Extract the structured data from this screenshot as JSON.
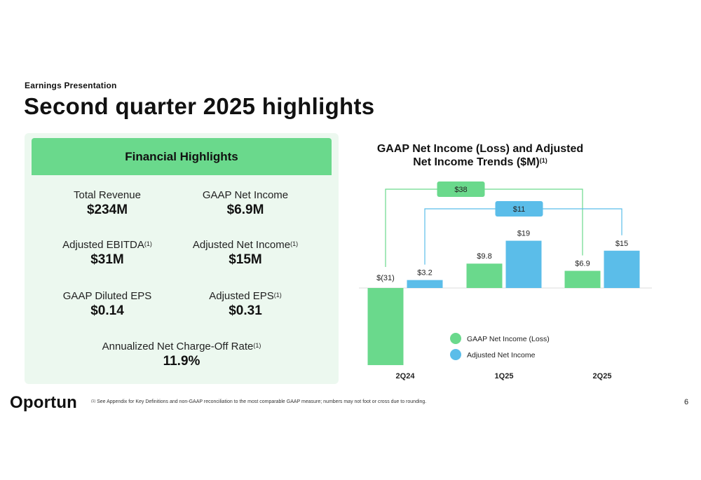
{
  "eyebrow": "Earnings Presentation",
  "title": "Second quarter 2025 highlights",
  "highlights": {
    "header": "Financial Highlights",
    "metrics": [
      {
        "label": "Total Revenue",
        "sup": "",
        "value": "$234M"
      },
      {
        "label": "GAAP Net Income",
        "sup": "",
        "value": "$6.9M"
      },
      {
        "label": "Adjusted EBITDA",
        "sup": "(1)",
        "value": "$31M"
      },
      {
        "label": "Adjusted Net Income",
        "sup": "(1)",
        "value": "$15M"
      },
      {
        "label": "GAAP Diluted EPS",
        "sup": "",
        "value": "$0.14"
      },
      {
        "label": "Adjusted EPS",
        "sup": "(1)",
        "value": "$0.31"
      },
      {
        "label": "Annualized Net Charge-Off Rate",
        "sup": "(1)",
        "value": "11.9%"
      }
    ]
  },
  "chart_data": {
    "type": "bar",
    "title": "GAAP Net Income (Loss) and Adjusted Net Income Trends ($M)",
    "title_line1": "GAAP Net Income (Loss) and Adjusted",
    "title_line2": "Net Income Trends ($M)",
    "title_sup": "(1)",
    "categories": [
      "2Q24",
      "1Q25",
      "2Q25"
    ],
    "series": [
      {
        "name": "GAAP Net Income (Loss)",
        "color": "#6ad98c",
        "values": [
          -31,
          9.8,
          6.9
        ],
        "labels": [
          "$(31)",
          "$9.8",
          "$6.9"
        ]
      },
      {
        "name": "Adjusted Net Income",
        "color": "#5bbde9",
        "values": [
          3.2,
          19,
          15
        ],
        "labels": [
          "$3.2",
          "$19",
          "$15"
        ]
      }
    ],
    "annotations": [
      {
        "text": "$38",
        "series": 0,
        "from": "2Q24",
        "to": "2Q25",
        "color": "#6ad98c"
      },
      {
        "text": "$11",
        "series": 1,
        "from": "2Q24",
        "to": "2Q25",
        "color": "#5bbde9"
      }
    ],
    "legend": "bottom-right",
    "grid": false
  },
  "footer": {
    "logo": "Oportun",
    "footnote_sup": "(1)",
    "footnote": "See Appendix for Key Definitions and non-GAAP reconciliation to the most comparable GAAP measure; numbers may not foot or cross due to rounding.",
    "page": "6"
  }
}
